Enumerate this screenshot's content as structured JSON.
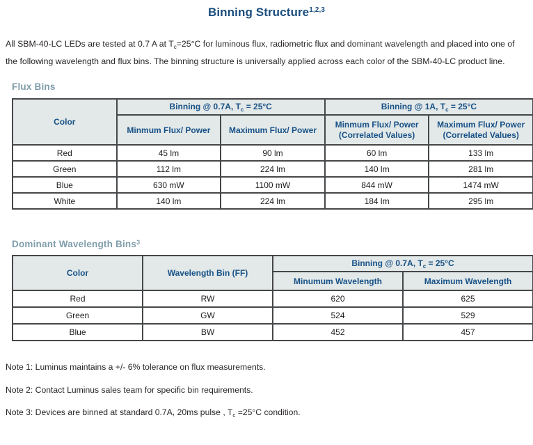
{
  "page": {
    "title": {
      "text": "Binning Structure",
      "sup": "1,2,3"
    },
    "intro": {
      "pre": "All SBM-40-LC LEDs are tested at 0.7 A at T",
      "sub": "c",
      "post": "=25°C for luminous flux, radiometric flux and dominant wavelength and placed into one of the following wavelength and flux bins. The binning structure is universally applied across each color of the SBM-40-LC product line."
    }
  },
  "flux": {
    "heading": "Flux Bins",
    "color_header": "Color",
    "group_07": {
      "pre": "Binning @ 0.7A, T",
      "sub": "c",
      "post": " = 25°C"
    },
    "group_1a": {
      "pre": "Binning @ 1A, T",
      "sub": "c",
      "post": " = 25°C"
    },
    "sub_min": "Minmum Flux/ Power",
    "sub_max": "Maximum Flux/ Power",
    "sub_min_corr": {
      "l1": "Minmum Flux/ Power",
      "l2": "(Correlated Values)"
    },
    "sub_max_corr": {
      "l1": "Maximum Flux/ Power",
      "l2": "(Correlated Values)"
    },
    "rows": [
      {
        "color": "Red",
        "c1": "45 lm",
        "c2": "90 lm",
        "c3": "60 lm",
        "c4": "133 lm"
      },
      {
        "color": "Green",
        "c1": "112 lm",
        "c2": "224 lm",
        "c3": "140 lm",
        "c4": "281 lm"
      },
      {
        "color": "Blue",
        "c1": "630 mW",
        "c2": "1100 mW",
        "c3": "844 mW",
        "c4": "1474 mW"
      },
      {
        "color": "White",
        "c1": "140 lm",
        "c2": "224 lm",
        "c3": "184 lm",
        "c4": "295 lm"
      }
    ]
  },
  "wavelength": {
    "heading": {
      "text": "Dominant Wavelength Bins",
      "sup": "3"
    },
    "color_header": "Color",
    "bin_header": "Wavelength Bin (FF)",
    "group_07": {
      "pre": "Binning @ 0.7A, T",
      "sub": "c",
      "post": " = 25°C"
    },
    "sub_min": "Minumum Wavelength",
    "sub_max": "Maximum Wavelength",
    "rows": [
      {
        "color": "Red",
        "bin": "RW",
        "min": "620",
        "max": "625"
      },
      {
        "color": "Green",
        "bin": "GW",
        "min": "524",
        "max": "529"
      },
      {
        "color": "Blue",
        "bin": "BW",
        "min": "452",
        "max": "457"
      }
    ]
  },
  "notes": [
    {
      "pre": "Note 1: Luminus maintains a +/- 6% tolerance on flux measurements.",
      "sub": "",
      "post": ""
    },
    {
      "pre": "Note 2: Contact Luminus sales team for specific bin requirements.",
      "sub": "",
      "post": ""
    },
    {
      "pre": "Note 3: Devices are binned at standard 0.7A, 20ms pulse , T",
      "sub": "c",
      "post": " =25°C  condition."
    }
  ],
  "colors": {
    "title_navy": "#1b4e7e",
    "header_text_navy": "#175287",
    "section_heading_slate": "#7f9dab",
    "table_header_bg": "#e3e8e8",
    "table_border": "#454749",
    "body_text": "#2a2627"
  }
}
